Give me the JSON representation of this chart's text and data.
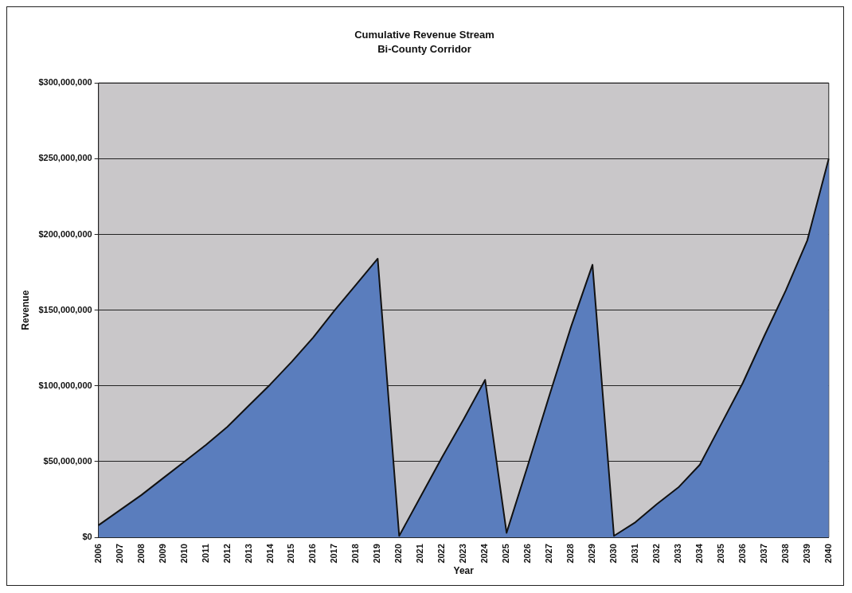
{
  "chart_data": {
    "type": "area",
    "title": "Cumulative Revenue Stream",
    "subtitle": "Bi-County Corridor",
    "xlabel": "Year",
    "ylabel": "Revenue",
    "categories": [
      "2006",
      "2007",
      "2008",
      "2009",
      "2010",
      "2011",
      "2012",
      "2013",
      "2014",
      "2015",
      "2016",
      "2017",
      "2018",
      "2019",
      "2020",
      "2021",
      "2022",
      "2023",
      "2024",
      "2025",
      "2026",
      "2027",
      "2028",
      "2029",
      "2030",
      "2031",
      "2032",
      "2033",
      "2034",
      "2035",
      "2036",
      "2037",
      "2038",
      "2039",
      "2040"
    ],
    "series": [
      {
        "color": "#5a7dbd",
        "values": [
          8000000,
          18000000,
          28000000,
          39000000,
          50000000,
          61000000,
          73000000,
          87000000,
          101000000,
          116000000,
          132000000,
          150000000,
          167000000,
          184000000,
          1000000,
          27000000,
          53000000,
          78000000,
          104000000,
          3000000,
          48000000,
          94000000,
          139000000,
          180000000,
          1000000,
          10000000,
          22000000,
          33000000,
          48000000,
          75000000,
          102000000,
          133000000,
          163000000,
          196000000,
          250000000
        ]
      }
    ],
    "ylim": [
      0,
      300000000
    ],
    "yticks": [
      {
        "value": 0,
        "label": "$0"
      },
      {
        "value": 50000000,
        "label": "$50,000,000"
      },
      {
        "value": 100000000,
        "label": "$100,000,000"
      },
      {
        "value": 150000000,
        "label": "$150,000,000"
      },
      {
        "value": 200000000,
        "label": "$200,000,000"
      },
      {
        "value": 250000000,
        "label": "$250,000,000"
      },
      {
        "value": 300000000,
        "label": "$300,000,000"
      }
    ],
    "grid": "y",
    "legend": false
  }
}
